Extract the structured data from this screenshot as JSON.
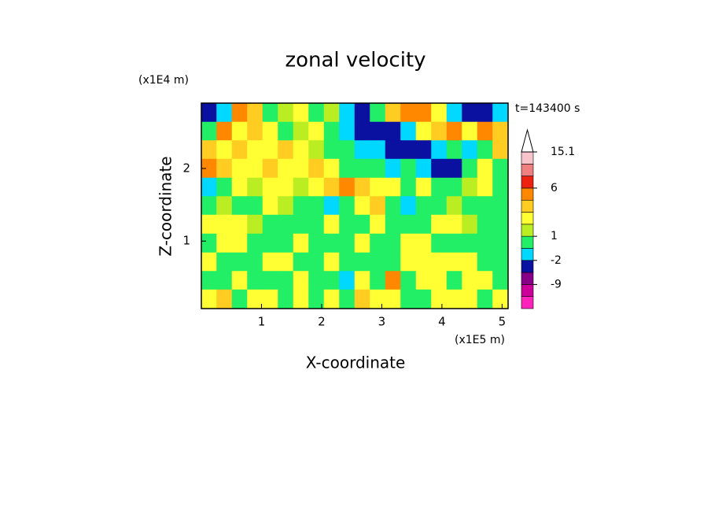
{
  "chart_data": {
    "type": "contour",
    "title": "zonal velocity",
    "x_label": "X-coordinate",
    "y_label": "Z-coordinate",
    "x_unit": "(x1E5 m)",
    "y_unit": "(x1E4 m)",
    "time_label": "t=143400 s",
    "xlim": [
      0,
      5.1
    ],
    "ylim": [
      0.07,
      2.9
    ],
    "xticks": [
      1,
      2,
      3,
      4,
      5
    ],
    "yticks": [
      1,
      2
    ],
    "x": [
      0.13,
      0.38,
      0.64,
      0.89,
      1.15,
      1.4,
      1.66,
      1.91,
      2.17,
      2.42,
      2.68,
      2.93,
      3.19,
      3.44,
      3.7,
      3.95,
      4.21,
      4.46,
      4.72,
      4.97
    ],
    "y": [
      2.77,
      2.51,
      2.26,
      2.0,
      1.74,
      1.49,
      1.23,
      0.97,
      0.71,
      0.46,
      0.2
    ],
    "z": [
      [
        -3.5,
        -1.5,
        5,
        3.5,
        0,
        1.5,
        2.5,
        0,
        1.5,
        -1.5,
        -3.5,
        0,
        3.5,
        5,
        5,
        2.5,
        -1.5,
        -3.5,
        -3.5,
        -1.5
      ],
      [
        0,
        5,
        2.5,
        3.5,
        2.5,
        0,
        1.5,
        2.5,
        0,
        -1.5,
        -3.5,
        -3.5,
        -3.5,
        -1.5,
        2.5,
        3.5,
        5,
        2.5,
        5,
        3.5
      ],
      [
        3.5,
        2.5,
        3.5,
        2.5,
        2.5,
        3.5,
        2.5,
        1.5,
        0,
        0,
        -1.5,
        -1.5,
        -3.5,
        -3.5,
        -3.5,
        -1.5,
        0,
        -1.5,
        0,
        3.5
      ],
      [
        5,
        3.5,
        2.5,
        2.5,
        3.5,
        2.5,
        2.5,
        3.5,
        2.5,
        0,
        0,
        0,
        -1.5,
        0,
        -1.5,
        -3.5,
        -3.5,
        0,
        2.5,
        0
      ],
      [
        -1.5,
        0,
        2.5,
        1.5,
        2.5,
        2.5,
        1.5,
        2.5,
        3.5,
        5,
        3.5,
        2.5,
        2.5,
        0,
        2.5,
        0,
        0,
        1.5,
        2.5,
        0
      ],
      [
        0,
        1.5,
        0,
        0,
        2.5,
        1.5,
        0,
        0,
        -1.5,
        0,
        2.5,
        3.5,
        0,
        -1.5,
        0,
        0,
        1.5,
        0,
        0,
        0
      ],
      [
        2.5,
        2.5,
        2.5,
        1.5,
        0,
        0,
        0,
        0,
        2.5,
        0,
        0,
        2.5,
        0,
        0,
        0,
        2.5,
        2.5,
        1.5,
        0,
        0
      ],
      [
        0,
        2.5,
        2.5,
        0,
        0,
        0,
        2.5,
        0,
        0,
        0,
        2.5,
        0,
        0,
        2.5,
        2.5,
        0,
        0,
        0,
        0,
        0
      ],
      [
        2.5,
        0,
        0,
        0,
        2.5,
        2.5,
        0,
        0,
        2.5,
        0,
        0,
        0,
        0,
        2.5,
        2.5,
        2.5,
        2.5,
        2.5,
        0,
        0
      ],
      [
        0,
        0,
        2.5,
        0,
        0,
        0,
        2.5,
        0,
        0,
        -1.5,
        2.5,
        0,
        5,
        0,
        2.5,
        2.5,
        0,
        2.5,
        2.5,
        0
      ],
      [
        2.5,
        3.5,
        0,
        2.5,
        2.5,
        0,
        2.5,
        0,
        2.5,
        0,
        3.5,
        2.5,
        2.5,
        0,
        0,
        2.5,
        2.5,
        2.5,
        0,
        2.5
      ]
    ],
    "colorbar": {
      "levels": [
        -15,
        -12,
        -9,
        -5,
        -2,
        -1,
        1,
        2,
        3,
        4.5,
        6,
        9,
        12,
        15.1
      ],
      "colors": [
        "#ff22bb",
        "#cc0099",
        "#880088",
        "#0a10a0",
        "#00d8ff",
        "#22ee66",
        "#bbee22",
        "#ffff33",
        "#ffcc22",
        "#ff8800",
        "#ee2211",
        "#f08080",
        "#f8c4cc"
      ],
      "ticks": [
        15.1,
        6,
        1,
        -2,
        -9
      ]
    }
  }
}
